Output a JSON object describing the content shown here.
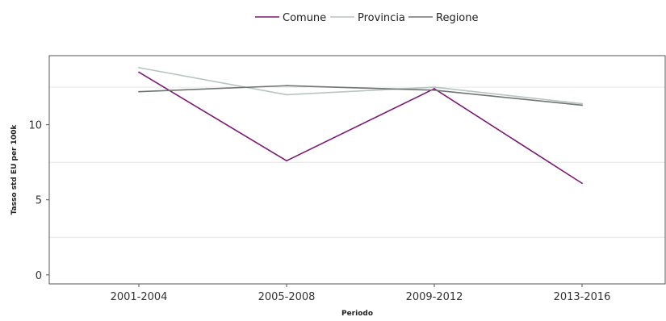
{
  "chart_data": {
    "type": "line",
    "categories": [
      "2001-2004",
      "2005-2008",
      "2009-2012",
      "2013-2016"
    ],
    "series": [
      {
        "name": "Comune",
        "color": "#7b1a73",
        "values": [
          13.5,
          7.6,
          12.4,
          6.1
        ]
      },
      {
        "name": "Provincia",
        "color": "#b8c4c0",
        "values": [
          13.8,
          12.0,
          12.5,
          11.4
        ]
      },
      {
        "name": "Regione",
        "color": "#6f7570",
        "values": [
          12.2,
          12.6,
          12.3,
          11.3
        ]
      }
    ],
    "xlabel": "Periodo",
    "ylabel": "Tasso std EU per 100k",
    "ylim": [
      -0.6,
      14.6
    ],
    "yticks": [
      0,
      5,
      10
    ],
    "minor_gridlines": [
      2.5,
      7.5,
      12.5
    ],
    "grid": "horizontal-minor",
    "legend_position": "top"
  }
}
